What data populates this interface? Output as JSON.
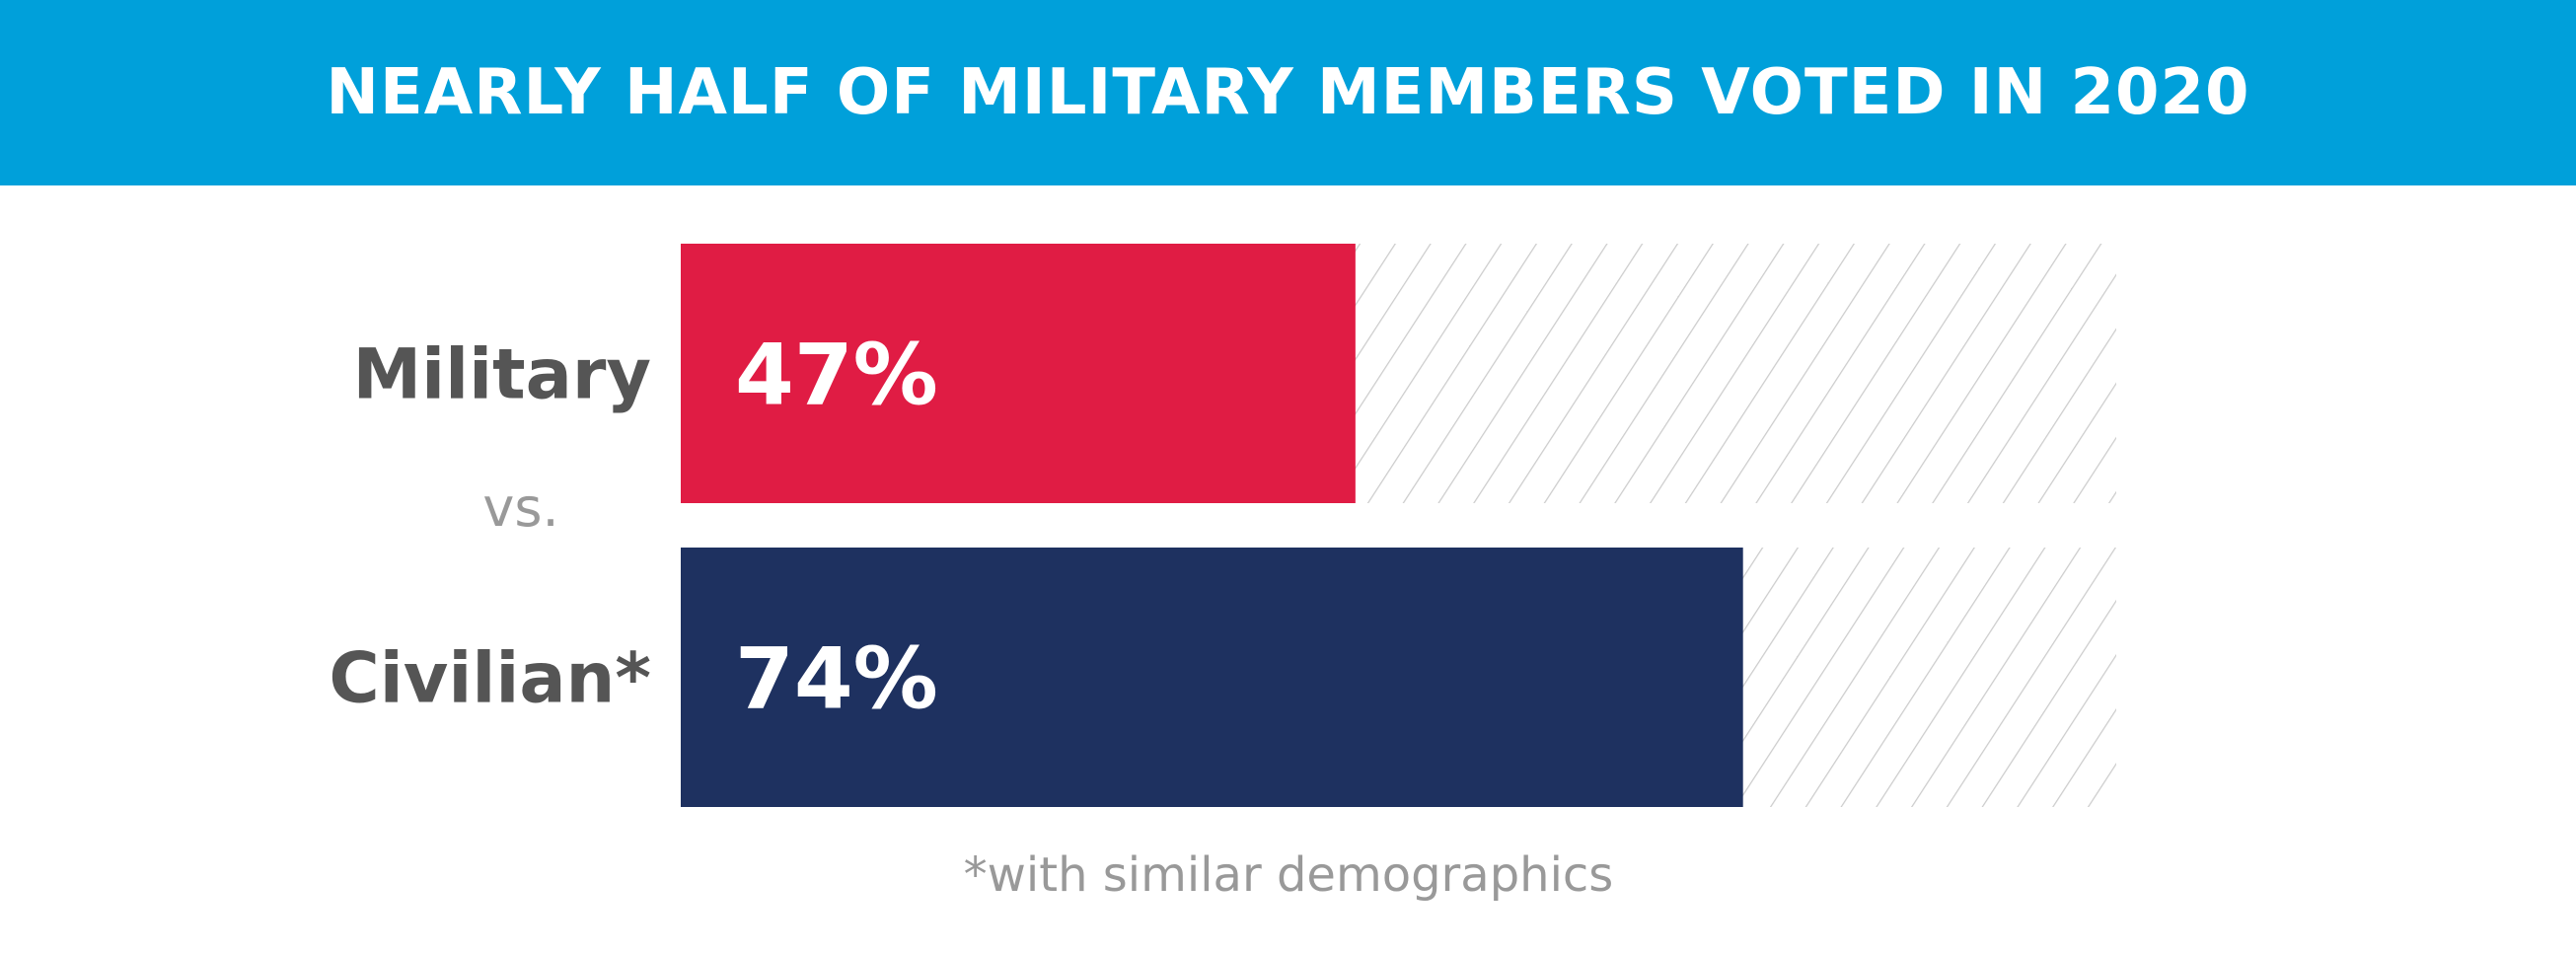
{
  "chart_data": {
    "type": "bar",
    "orientation": "horizontal",
    "title": "NEARLY HALF OF MILITARY MEMBERS VOTED IN 2020",
    "categories": [
      "Military",
      "Civilian*"
    ],
    "values": [
      47,
      74
    ],
    "value_labels": [
      "47%",
      "74%"
    ],
    "colors": [
      "#e01c44",
      "#1e3160"
    ],
    "separator_text": "vs.",
    "footnote": "*with similar demographics",
    "xlim": [
      0,
      100
    ],
    "remainder_fill": "diagonal-hatch"
  },
  "theme": {
    "banner_color": "#00a0da",
    "hatch_color": "#cccccc"
  }
}
